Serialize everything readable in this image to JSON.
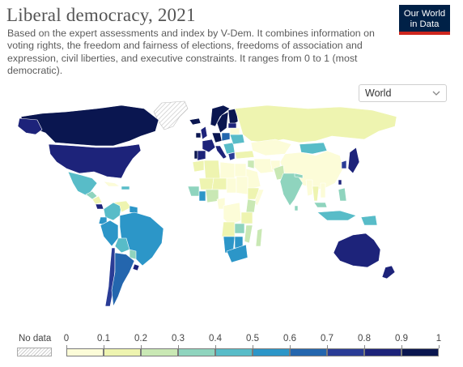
{
  "header": {
    "title": "Liberal democracy, 2021",
    "subtitle": "Based on the expert assessments and index by V-Dem. It combines information on voting rights, the freedom and fairness of elections, freedoms of association and expression, civil liberties, and executive constraints. It ranges from 0 to 1 (most democratic)."
  },
  "logo": {
    "line1": "Our World",
    "line2": "in Data"
  },
  "region_selector": {
    "selected": "World",
    "icon": "chevron-down-icon"
  },
  "legend": {
    "nodata_label": "No data",
    "ticks": [
      "0",
      "0.1",
      "0.2",
      "0.3",
      "0.4",
      "0.5",
      "0.6",
      "0.7",
      "0.8",
      "0.9",
      "1"
    ],
    "colors": [
      "#fcfcd8",
      "#eef4b0",
      "#c9e8b4",
      "#8fd4be",
      "#58bcc8",
      "#2c96c8",
      "#2466ae",
      "#2a3c96",
      "#1d237a",
      "#0a1650"
    ]
  },
  "colors": {
    "nodata": "#d9d9d9",
    "border": "#ffffff",
    "title": "#555555",
    "logo_bg": "#002147",
    "logo_accent": "#ce261e"
  }
}
